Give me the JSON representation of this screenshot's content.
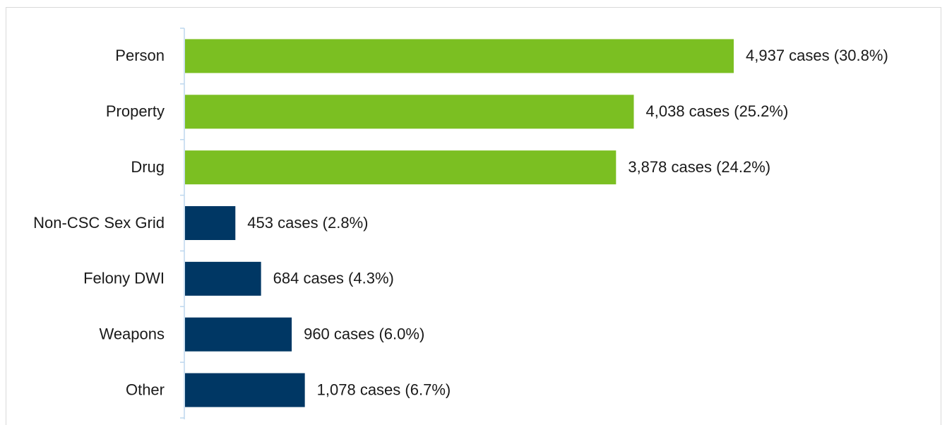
{
  "chart_data": {
    "type": "barh",
    "categories": [
      "Person",
      "Property",
      "Drug",
      "Non-CSC Sex Grid",
      "Felony DWI",
      "Weapons",
      "Other"
    ],
    "values": [
      4937,
      4038,
      3878,
      453,
      684,
      960,
      1078
    ],
    "value_labels": [
      "4,937 cases (30.8%)",
      "4,038 cases (25.2%)",
      "3,878 cases (24.2%)",
      "453 cases (2.8%)",
      "684 cases (4.3%)",
      "960 cases (6.0%)",
      "1,078 cases (6.7%)"
    ],
    "colors": [
      "#7bbf22",
      "#7bbf22",
      "#7bbf22",
      "#003764",
      "#003764",
      "#003764",
      "#003764"
    ]
  }
}
